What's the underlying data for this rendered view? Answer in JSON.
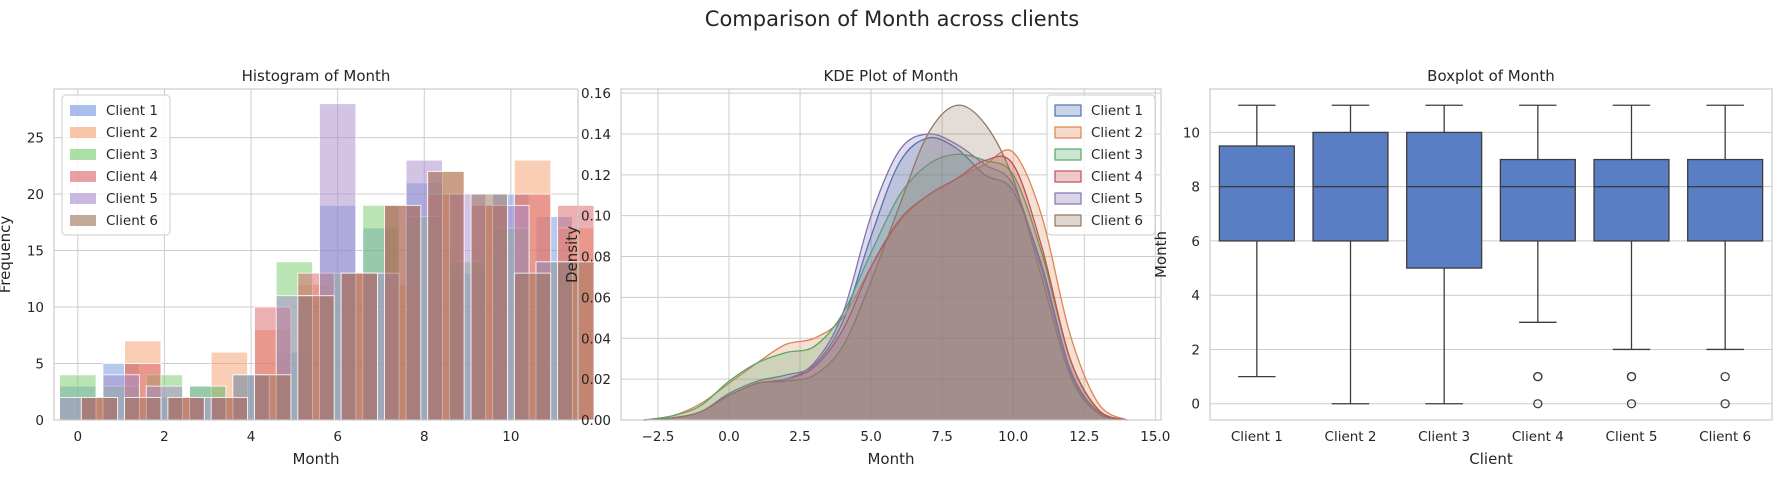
{
  "figure": {
    "title": "Comparison of Month across clients"
  },
  "colors": {
    "series": [
      "#4c72b0",
      "#dd8452",
      "#55a868",
      "#c44e52",
      "#8172b3",
      "#937860"
    ],
    "series_hist": [
      "#6d95dc",
      "#f59e6c",
      "#75c96a",
      "#d96166",
      "#a789cb",
      "#9b7055"
    ],
    "box_fill": "#5a7ec3",
    "grid": "#cccccc",
    "spine": "#cccccc",
    "ink": "#3d3d3d"
  },
  "chart_data": [
    {
      "type": "bar",
      "subtype": "histogram",
      "title": "Histogram of Month",
      "xlabel": "Month",
      "ylabel": "Frequency",
      "xlim": [
        -0.55,
        11.55
      ],
      "ylim": [
        0,
        29.3
      ],
      "xticks": [
        0,
        2,
        4,
        6,
        8,
        10
      ],
      "yticks": [
        0,
        5,
        10,
        15,
        20,
        25
      ],
      "legend": "top-left",
      "x": [
        0,
        1,
        2,
        3,
        4,
        5,
        6,
        7,
        8,
        9,
        10,
        11
      ],
      "series": [
        {
          "name": "Client 1",
          "values": [
            3,
            5,
            2,
            3,
            4,
            6,
            19,
            17,
            21,
            13,
            20,
            18
          ]
        },
        {
          "name": "Client 2",
          "values": [
            2,
            7,
            2,
            6,
            8,
            12,
            13,
            12,
            22,
            19,
            23,
            17
          ]
        },
        {
          "name": "Client 3",
          "values": [
            4,
            3,
            4,
            3,
            4,
            14,
            13,
            19,
            18,
            14,
            17,
            14
          ]
        },
        {
          "name": "Client 4",
          "values": [
            2,
            5,
            2,
            2,
            10,
            13,
            13,
            19,
            20,
            19,
            20,
            19
          ]
        },
        {
          "name": "Client 5",
          "values": [
            2,
            4,
            3,
            2,
            4,
            11,
            28,
            13,
            23,
            20,
            19,
            14
          ]
        },
        {
          "name": "Client 6",
          "values": [
            2,
            2,
            2,
            2,
            4,
            11,
            13,
            19,
            22,
            20,
            13,
            14
          ]
        }
      ]
    },
    {
      "type": "area",
      "subtype": "kde",
      "title": "KDE Plot of Month",
      "xlabel": "Month",
      "ylabel": "Density",
      "xlim": [
        -3.8,
        15.2
      ],
      "ylim": [
        0,
        0.162
      ],
      "xticks": [
        -2.5,
        0.0,
        2.5,
        5.0,
        7.5,
        10.0,
        12.5,
        15.0
      ],
      "xtick_labels": [
        "−2.5",
        "0.0",
        "2.5",
        "5.0",
        "7.5",
        "10.0",
        "12.5",
        "15.0"
      ],
      "yticks": [
        0.0,
        0.02,
        0.04,
        0.06,
        0.08,
        0.1,
        0.12,
        0.14,
        0.16
      ],
      "ytick_labels": [
        "0.00",
        "0.02",
        "0.04",
        "0.06",
        "0.08",
        "0.10",
        "0.12",
        "0.14",
        "0.16"
      ],
      "legend": "top-right",
      "x": [
        -3,
        -2,
        -1,
        0,
        1,
        2,
        3,
        4,
        5,
        6,
        7,
        8,
        9,
        10,
        11,
        12,
        13,
        14
      ],
      "series": [
        {
          "name": "Client 1",
          "values": [
            0,
            0.001,
            0.004,
            0.013,
            0.019,
            0.022,
            0.027,
            0.048,
            0.09,
            0.126,
            0.138,
            0.133,
            0.12,
            0.112,
            0.076,
            0.025,
            0.004,
            0
          ]
        },
        {
          "name": "Client 2",
          "values": [
            0,
            0.002,
            0.008,
            0.018,
            0.028,
            0.037,
            0.04,
            0.05,
            0.075,
            0.097,
            0.11,
            0.118,
            0.125,
            0.131,
            0.1,
            0.042,
            0.008,
            0
          ]
        },
        {
          "name": "Client 3",
          "values": [
            0,
            0.002,
            0.007,
            0.019,
            0.028,
            0.033,
            0.036,
            0.052,
            0.082,
            0.11,
            0.125,
            0.13,
            0.127,
            0.12,
            0.082,
            0.03,
            0.005,
            0
          ]
        },
        {
          "name": "Client 4",
          "values": [
            0,
            0.001,
            0.004,
            0.012,
            0.018,
            0.02,
            0.026,
            0.044,
            0.075,
            0.098,
            0.11,
            0.118,
            0.127,
            0.125,
            0.085,
            0.03,
            0.005,
            0
          ]
        },
        {
          "name": "Client 5",
          "values": [
            0,
            0.001,
            0.004,
            0.012,
            0.018,
            0.02,
            0.028,
            0.052,
            0.1,
            0.132,
            0.14,
            0.135,
            0.125,
            0.115,
            0.074,
            0.024,
            0.003,
            0
          ]
        },
        {
          "name": "Client 6",
          "values": [
            0,
            0.001,
            0.004,
            0.012,
            0.018,
            0.019,
            0.022,
            0.036,
            0.068,
            0.105,
            0.14,
            0.154,
            0.145,
            0.118,
            0.07,
            0.022,
            0.003,
            0
          ]
        }
      ]
    },
    {
      "type": "box",
      "title": "Boxplot of Month",
      "xlabel": "Client",
      "ylabel": "Month",
      "ylim": [
        -0.6,
        11.6
      ],
      "yticks": [
        0,
        2,
        4,
        6,
        8,
        10
      ],
      "categories": [
        "Client 1",
        "Client 2",
        "Client 3",
        "Client 4",
        "Client 5",
        "Client 6"
      ],
      "boxes": [
        {
          "whisker_low": 1,
          "q1": 6,
          "median": 8,
          "q3": 9.5,
          "whisker_high": 11,
          "outliers": []
        },
        {
          "whisker_low": 0,
          "q1": 6,
          "median": 8,
          "q3": 10,
          "whisker_high": 11,
          "outliers": []
        },
        {
          "whisker_low": 0,
          "q1": 5,
          "median": 8,
          "q3": 10,
          "whisker_high": 11,
          "outliers": []
        },
        {
          "whisker_low": 3,
          "q1": 6,
          "median": 8,
          "q3": 9,
          "whisker_high": 11,
          "outliers": [
            0,
            1,
            1
          ]
        },
        {
          "whisker_low": 2,
          "q1": 6,
          "median": 8,
          "q3": 9,
          "whisker_high": 11,
          "outliers": [
            0,
            1,
            1
          ]
        },
        {
          "whisker_low": 2,
          "q1": 6,
          "median": 8,
          "q3": 9,
          "whisker_high": 11,
          "outliers": [
            0,
            1
          ]
        }
      ]
    }
  ]
}
